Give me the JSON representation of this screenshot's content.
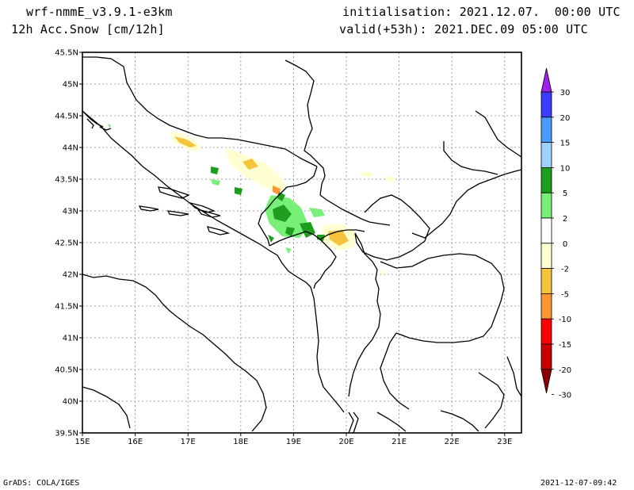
{
  "header": {
    "model": "wrf-nmmE_v3.9.1-e3km",
    "field": "12h Acc.Snow [cm/12h]",
    "init": "initialisation: 2021.12.07.  00:00 UTC",
    "valid": "valid(+53h): 2021.DEC.09 05:00 UTC"
  },
  "axes": {
    "lat_labels": [
      "45.5N",
      "45N",
      "44.5N",
      "44N",
      "43.5N",
      "43N",
      "42.5N",
      "42N",
      "41.5N",
      "41N",
      "40.5N",
      "40N",
      "39.5N"
    ],
    "lon_labels": [
      "15E",
      "16E",
      "17E",
      "18E",
      "19E",
      "20E",
      "21E",
      "22E",
      "23E"
    ]
  },
  "colorbar": {
    "labels": [
      "30",
      "20",
      "15",
      "10",
      "5",
      "2",
      "0",
      "-2",
      "-5",
      "-10",
      "-15",
      "-20",
      "-30"
    ],
    "colors": [
      "#a020f0",
      "#3c3cff",
      "#4a9cff",
      "#a0d2ff",
      "#1e9e1e",
      "#78f078",
      "#ffffff",
      "#ffffd2",
      "#f5c33c",
      "#ff9632",
      "#ff0000",
      "#c80000",
      "#8b0000"
    ]
  },
  "footer": {
    "left": "GrADS: COLA/IGES",
    "right": "2021-12-07-09:42"
  }
}
